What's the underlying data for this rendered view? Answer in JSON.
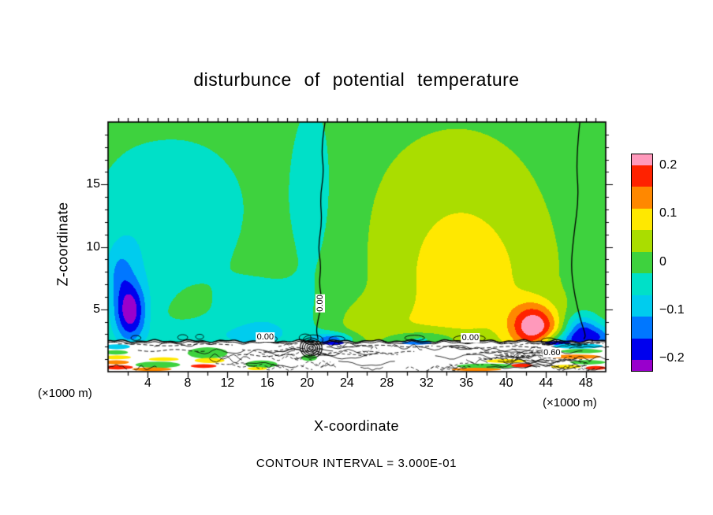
{
  "chart_data": {
    "type": "filled_contour",
    "title": "disturbunce of potential temperature",
    "xlabel": "X-coordinate",
    "ylabel": "Z-coordinate",
    "x_unit": "(×1000 m)",
    "contour_interval_label": "CONTOUR INTERVAL = 3.000E-01",
    "x_range": [
      0,
      50
    ],
    "y_range": [
      0,
      20
    ],
    "x_ticks": [
      4,
      8,
      12,
      16,
      20,
      24,
      28,
      32,
      36,
      40,
      44,
      48
    ],
    "y_ticks": [
      5,
      10,
      15
    ],
    "levels": [
      -0.25,
      -0.2,
      -0.15,
      -0.1,
      -0.05,
      0,
      0.05,
      0.1,
      0.15,
      0.2,
      0.25
    ],
    "level_colors": [
      "#9900cc",
      "#9900cc",
      "#0000ee",
      "#0077ff",
      "#00ccee",
      "#00e0c8",
      "#3ed23e",
      "#aadd00",
      "#ffe800",
      "#ff8800",
      "#ff2200",
      "#ff99bb"
    ],
    "base_value": 0.03,
    "features": [
      {
        "cx": 7,
        "cz": 13,
        "a": -0.055,
        "sx": 6,
        "sz": 5
      },
      {
        "cx": 2,
        "cz": 7,
        "a": -0.05,
        "sx": 2.5,
        "sz": 5
      },
      {
        "cx": 16,
        "cz": 4.2,
        "a": -0.06,
        "sx": 3.5,
        "sz": 2.2
      },
      {
        "cx": 12,
        "cz": 2.8,
        "a": -0.05,
        "sx": 6,
        "sz": 0.9
      },
      {
        "cx": 20.5,
        "cz": 15,
        "a": -0.05,
        "sx": 1.8,
        "sz": 6
      },
      {
        "cx": 36,
        "cz": 6.5,
        "a": 0.085,
        "sx": 5,
        "sz": 4
      },
      {
        "cx": 35,
        "cz": 13,
        "a": 0.045,
        "sx": 6,
        "sz": 5
      },
      {
        "cx": 27,
        "cz": 3.5,
        "a": 0.04,
        "sx": 4,
        "sz": 1.5
      },
      {
        "cx": 42.8,
        "cz": 3.6,
        "a": 0.24,
        "sx": 1.7,
        "sz": 1.3
      },
      {
        "cx": 2.2,
        "cz": 4.8,
        "a": -0.21,
        "sx": 1.1,
        "sz": 1.6
      },
      {
        "cx": 1.2,
        "cz": 8,
        "a": -0.07,
        "sx": 1,
        "sz": 1.5
      },
      {
        "cx": 47.6,
        "cz": 3.1,
        "a": -0.2,
        "sx": 1.2,
        "sz": 1
      },
      {
        "cx": 49.6,
        "cz": 2.7,
        "a": -0.12,
        "sx": 0.9,
        "sz": 0.7
      },
      {
        "cx": 45.6,
        "cz": 2.5,
        "a": -0.1,
        "sx": 1.6,
        "sz": 0.45
      },
      {
        "cx": 22.5,
        "cz": 2.55,
        "a": -0.16,
        "sx": 1.4,
        "sz": 0.4
      },
      {
        "cx": 31.5,
        "cz": 2.6,
        "a": -0.09,
        "sx": 2.5,
        "sz": 0.45
      }
    ],
    "zero_contour_lines": [
      [
        [
          21.8,
          20
        ],
        [
          21.4,
          18
        ],
        [
          21.7,
          16
        ],
        [
          21.3,
          14
        ],
        [
          21.5,
          12
        ],
        [
          21.1,
          10
        ],
        [
          21.4,
          8.5
        ],
        [
          21.2,
          7
        ],
        [
          21.5,
          5.8
        ],
        [
          21.2,
          4.5
        ],
        [
          20.9,
          3.4
        ],
        [
          21.1,
          2.6
        ]
      ],
      [
        [
          47.4,
          20
        ],
        [
          47.0,
          17
        ],
        [
          47.3,
          14
        ],
        [
          46.8,
          11
        ],
        [
          46.5,
          8.5
        ],
        [
          46.8,
          6.5
        ],
        [
          47.2,
          5
        ],
        [
          47.6,
          3.8
        ],
        [
          48.0,
          2.9
        ],
        [
          47.8,
          2.6
        ]
      ]
    ],
    "contour_labels": [
      {
        "text": "0.00",
        "x": 21.35,
        "z": 5.5,
        "rot": -90
      },
      {
        "text": "0.00",
        "x": 15.8,
        "z": 2.75,
        "rot": 0
      },
      {
        "text": "0.00",
        "x": 36.4,
        "z": 2.7,
        "rot": 0
      },
      {
        "text": "0.60",
        "x": 44.6,
        "z": 1.5,
        "rot": 0
      }
    ],
    "boundary_layer": {
      "top_z": 2.45,
      "streaks": [
        {
          "x": 0.9,
          "z": 2.0,
          "w": 2.6,
          "h": 0.4,
          "color": "#00ccee"
        },
        {
          "x": 0.8,
          "z": 1.55,
          "w": 2.4,
          "h": 0.35,
          "color": "#3ed23e"
        },
        {
          "x": 0.9,
          "z": 1.15,
          "w": 2.8,
          "h": 0.32,
          "color": "#ffe800"
        },
        {
          "x": 0.8,
          "z": 0.75,
          "w": 2.6,
          "h": 0.32,
          "color": "#ff8800"
        },
        {
          "x": 1.0,
          "z": 0.35,
          "w": 3.0,
          "h": 0.34,
          "color": "#ff2200"
        },
        {
          "x": 5.0,
          "z": 0.55,
          "w": 4.5,
          "h": 0.5,
          "color": "#3ed23e"
        },
        {
          "x": 5.6,
          "z": 1.0,
          "w": 3.0,
          "h": 0.3,
          "color": "#ffe800"
        },
        {
          "x": 4.4,
          "z": 0.2,
          "w": 4.0,
          "h": 0.3,
          "color": "#ff8800"
        },
        {
          "x": 10.0,
          "z": 1.5,
          "w": 4.0,
          "h": 0.9,
          "color": "#3ed23e"
        },
        {
          "x": 10.2,
          "z": 0.9,
          "w": 3.0,
          "h": 0.4,
          "color": "#ffe800"
        },
        {
          "x": 9.6,
          "z": 0.45,
          "w": 2.6,
          "h": 0.3,
          "color": "#ff2200"
        },
        {
          "x": 15.4,
          "z": 0.6,
          "w": 3.2,
          "h": 0.6,
          "color": "#3ed23e"
        },
        {
          "x": 15.0,
          "z": 0.25,
          "w": 2.0,
          "h": 0.25,
          "color": "#ffe800"
        },
        {
          "x": 20.2,
          "z": 1.1,
          "w": 1.6,
          "h": 0.5,
          "color": "#3ed23e"
        },
        {
          "x": 22.6,
          "z": 2.3,
          "w": 2.2,
          "h": 0.3,
          "color": "#0000ee"
        },
        {
          "x": 31.0,
          "z": 2.3,
          "w": 3.0,
          "h": 0.28,
          "color": "#0077ff"
        },
        {
          "x": 38.0,
          "z": 0.45,
          "w": 6.0,
          "h": 0.4,
          "color": "#3ed23e"
        },
        {
          "x": 40.0,
          "z": 0.85,
          "w": 4.0,
          "h": 0.32,
          "color": "#ffe800"
        },
        {
          "x": 37.0,
          "z": 0.18,
          "w": 5.0,
          "h": 0.26,
          "color": "#ff8800"
        },
        {
          "x": 41.6,
          "z": 0.5,
          "w": 2.2,
          "h": 0.3,
          "color": "#ff2200"
        },
        {
          "x": 45.2,
          "z": 2.3,
          "w": 2.6,
          "h": 0.3,
          "color": "#0000ee"
        },
        {
          "x": 47.2,
          "z": 2.05,
          "w": 5.0,
          "h": 0.4,
          "color": "#00ccee"
        },
        {
          "x": 47.6,
          "z": 1.65,
          "w": 4.2,
          "h": 0.35,
          "color": "#3ed23e"
        },
        {
          "x": 47.0,
          "z": 1.2,
          "w": 5.0,
          "h": 0.35,
          "color": "#ff8800"
        },
        {
          "x": 48.2,
          "z": 0.75,
          "w": 3.6,
          "h": 0.35,
          "color": "#3ed23e"
        },
        {
          "x": 46.0,
          "z": 0.4,
          "w": 3.0,
          "h": 0.3,
          "color": "#ffe800"
        },
        {
          "x": 49.0,
          "z": 0.3,
          "w": 2.0,
          "h": 0.3,
          "color": "#ff2200"
        }
      ]
    },
    "colorbar": {
      "colors_bottom_to_top": [
        "#9900cc",
        "#0000ee",
        "#0077ff",
        "#00ccee",
        "#00e0c8",
        "#3ed23e",
        "#aadd00",
        "#ffe800",
        "#ff8800",
        "#ff2200",
        "#ff99bb"
      ],
      "spans": [
        0.5,
        1,
        1,
        1,
        1,
        1,
        1,
        1,
        1,
        1,
        0.5
      ],
      "value_range": [
        -0.225,
        0.225
      ],
      "ticks": [
        {
          "label": "0.2",
          "value": 0.2
        },
        {
          "label": "0.1",
          "value": 0.1
        },
        {
          "label": "0",
          "value": 0
        },
        {
          "label": "−0.1",
          "value": -0.1
        },
        {
          "label": "−0.2",
          "value": -0.2
        }
      ]
    }
  }
}
